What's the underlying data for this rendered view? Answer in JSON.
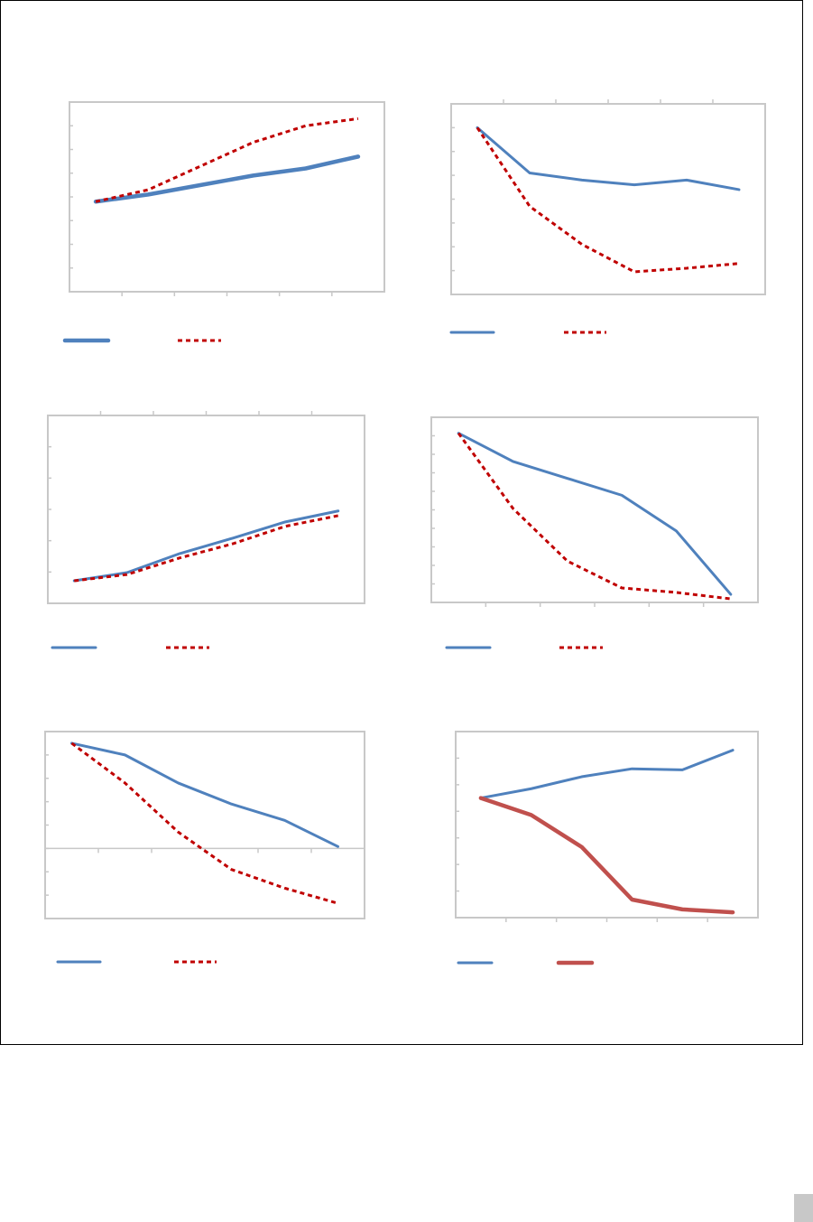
{
  "chart_data": [
    {
      "type": "line",
      "ylim": [
        0,
        8
      ],
      "yticks": 8,
      "x": [
        1,
        2,
        3,
        4,
        5,
        6
      ],
      "xtick_pos": "bottom",
      "series": [
        {
          "name": "",
          "color": "#4f81bd",
          "style": "solid",
          "width": "thick",
          "values": [
            3.8,
            4.1,
            4.5,
            4.9,
            5.2,
            5.7
          ]
        },
        {
          "name": "",
          "color": "#c00000",
          "style": "dashed",
          "width": "normal",
          "values": [
            3.8,
            4.3,
            5.3,
            6.3,
            7.0,
            7.3
          ]
        }
      ]
    },
    {
      "type": "line",
      "ylim": [
        0,
        8
      ],
      "yticks": 8,
      "x": [
        1,
        2,
        3,
        4,
        5,
        6
      ],
      "xtick_pos": "top",
      "series": [
        {
          "name": "",
          "color": "#4f81bd",
          "style": "solid",
          "width": "normal",
          "values": [
            7.0,
            5.1,
            4.8,
            4.6,
            4.8,
            4.4
          ]
        },
        {
          "name": "",
          "color": "#c00000",
          "style": "dashed",
          "width": "normal",
          "values": [
            7.0,
            3.7,
            2.1,
            0.95,
            1.1,
            1.3
          ]
        }
      ]
    },
    {
      "type": "line",
      "ylim": [
        0,
        6
      ],
      "yticks": 6,
      "x": [
        1,
        2,
        3,
        4,
        5,
        6
      ],
      "xtick_pos": "top",
      "series": [
        {
          "name": "",
          "color": "#4f81bd",
          "style": "solid",
          "width": "normal",
          "values": [
            0.72,
            0.98,
            1.59,
            2.08,
            2.6,
            2.95
          ]
        },
        {
          "name": "",
          "color": "#c00000",
          "style": "dashed",
          "width": "normal",
          "values": [
            0.72,
            0.92,
            1.45,
            1.9,
            2.46,
            2.8
          ]
        }
      ]
    },
    {
      "type": "line",
      "ylim": [
        0,
        9.85
      ],
      "yticks": 10,
      "x": [
        1,
        2,
        3,
        4,
        5,
        6
      ],
      "xtick_pos": "bottom",
      "series": [
        {
          "name": "",
          "color": "#4f81bd",
          "style": "solid",
          "width": "normal",
          "values": [
            9.0,
            7.5,
            6.6,
            5.7,
            3.8,
            0.43
          ]
        },
        {
          "name": "",
          "color": "#c00000",
          "style": "dashed",
          "width": "normal",
          "values": [
            9.0,
            5.0,
            2.2,
            0.77,
            0.53,
            0.19
          ]
        }
      ]
    },
    {
      "type": "line",
      "ylim": [
        -3,
        5
      ],
      "yticks": 8,
      "x": [
        1,
        2,
        3,
        4,
        5,
        6
      ],
      "xtick_pos": "zero",
      "series": [
        {
          "name": "",
          "color": "#4f81bd",
          "style": "solid",
          "width": "normal",
          "values": [
            4.5,
            4.0,
            2.8,
            1.9,
            1.2,
            0.08
          ]
        },
        {
          "name": "",
          "color": "#c00000",
          "style": "dashed",
          "width": "normal",
          "values": [
            4.5,
            2.8,
            0.7,
            -0.9,
            -1.7,
            -2.35
          ]
        }
      ]
    },
    {
      "type": "line",
      "ylim": [
        0,
        7
      ],
      "yticks": 7,
      "x": [
        1,
        2,
        3,
        4,
        5,
        6
      ],
      "xtick_pos": "bottom",
      "series": [
        {
          "name": "",
          "color": "#4f81bd",
          "style": "solid",
          "width": "normal",
          "values": [
            4.5,
            4.85,
            5.3,
            5.6,
            5.56,
            6.3
          ]
        },
        {
          "name": "",
          "color": "#c0504d",
          "style": "solid",
          "width": "thick",
          "values": [
            4.5,
            3.86,
            2.66,
            0.68,
            0.31,
            0.2
          ]
        }
      ]
    }
  ]
}
